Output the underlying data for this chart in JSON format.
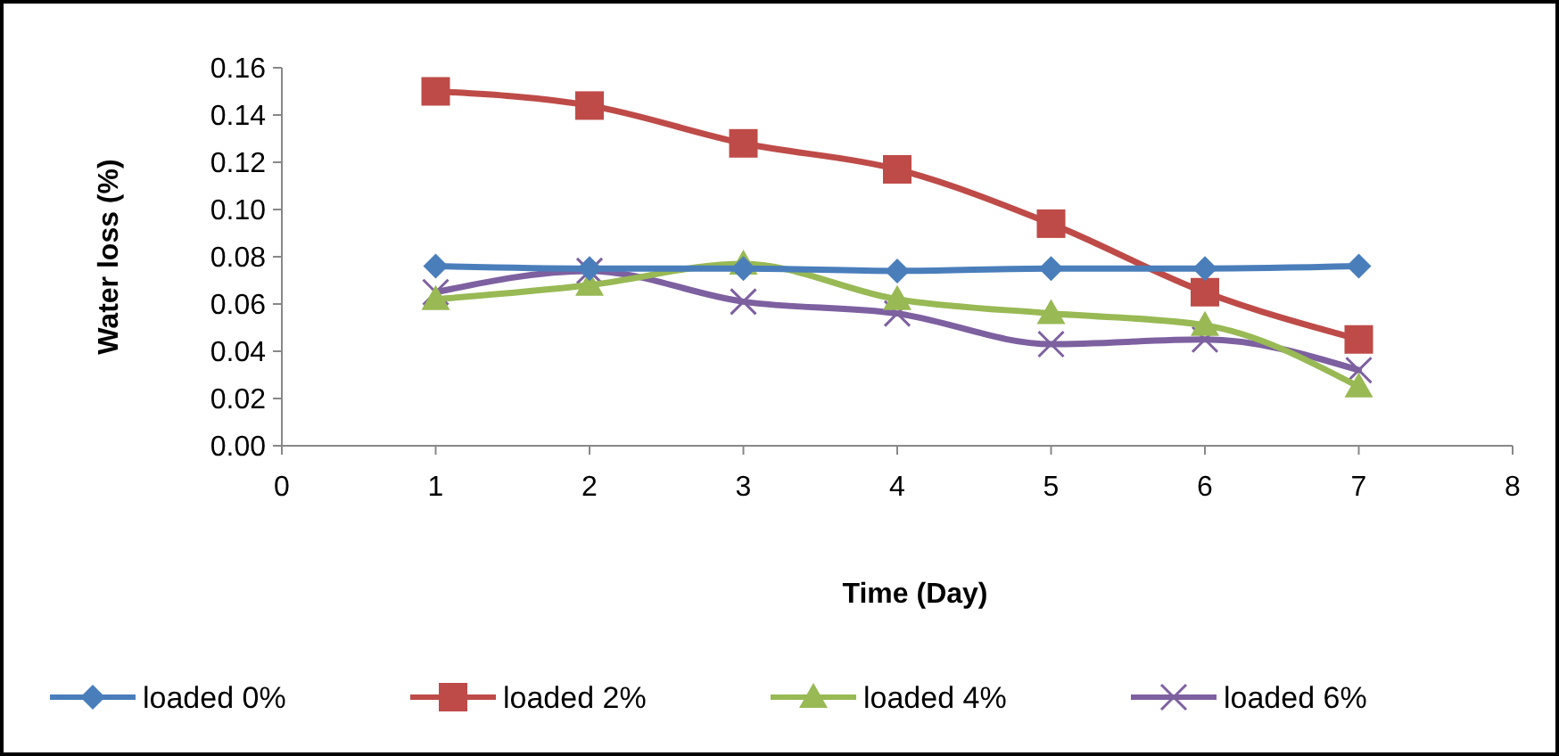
{
  "chart_data": {
    "type": "line",
    "xlabel": "Time (Day)",
    "ylabel": "Water loss (%)",
    "x": [
      1,
      2,
      3,
      4,
      5,
      6,
      7
    ],
    "xlim": [
      0,
      8
    ],
    "xticks": [
      0,
      1,
      2,
      3,
      4,
      5,
      6,
      7,
      8
    ],
    "ylim": [
      0,
      0.16
    ],
    "yticks": [
      {
        "value": 0,
        "label": "0.00"
      },
      {
        "value": 0.02,
        "label": "0.02"
      },
      {
        "value": 0.04,
        "label": "0.04"
      },
      {
        "value": 0.06,
        "label": "0.06"
      },
      {
        "value": 0.08,
        "label": "0.08"
      },
      {
        "value": 0.1,
        "label": "0.10"
      },
      {
        "value": 0.12,
        "label": "0.12"
      },
      {
        "value": 0.14,
        "label": "0.14"
      },
      {
        "value": 0.16,
        "label": "0.16"
      }
    ],
    "grid": false,
    "legend": "bottom",
    "series": [
      {
        "name": "loaded 0%",
        "color": "#4a7ebb",
        "marker": "diamond",
        "values": [
          0.076,
          0.075,
          0.075,
          0.074,
          0.075,
          0.075,
          0.076
        ]
      },
      {
        "name": "loaded 2%",
        "color": "#be4b48",
        "marker": "square",
        "values": [
          0.15,
          0.144,
          0.128,
          0.117,
          0.094,
          0.065,
          0.045
        ]
      },
      {
        "name": "loaded 4%",
        "color": "#98b954",
        "marker": "triangle",
        "values": [
          0.062,
          0.068,
          0.077,
          0.062,
          0.056,
          0.051,
          0.025
        ]
      },
      {
        "name": "loaded 6%",
        "color": "#7d60a0",
        "marker": "cross",
        "values": [
          0.065,
          0.074,
          0.061,
          0.056,
          0.043,
          0.045,
          0.032
        ]
      }
    ]
  }
}
